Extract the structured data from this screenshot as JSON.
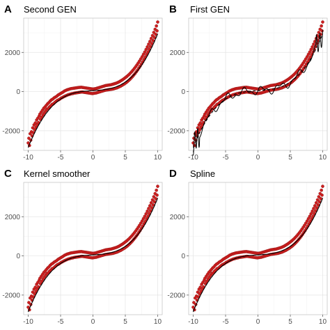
{
  "colors": {
    "points": "#cc1f1f",
    "points_stroke": "#8b0f0f",
    "curve": "#000000",
    "dashed": "#000000"
  },
  "chart_data": [
    {
      "type": "scatter",
      "panel": "A",
      "title": "Second GEN",
      "x_ticks": [
        -10,
        -5,
        0,
        5,
        10
      ],
      "y_ticks": [
        -2000,
        0,
        2000
      ],
      "xlim": [
        -10.7,
        10.7
      ],
      "ylim": [
        -3000,
        3750
      ],
      "curve_style": "smooth",
      "grid": true
    },
    {
      "type": "scatter",
      "panel": "B",
      "title": "First GEN",
      "x_ticks": [
        -10,
        -5,
        0,
        5,
        10
      ],
      "y_ticks": [
        -2000,
        0,
        2000
      ],
      "xlim": [
        -10.7,
        10.7
      ],
      "ylim": [
        -3000,
        3750
      ],
      "curve_style": "wiggly",
      "grid": true
    },
    {
      "type": "scatter",
      "panel": "C",
      "title": "Kernel smoother",
      "x_ticks": [
        -10,
        -5,
        0,
        5,
        10
      ],
      "y_ticks": [
        -2000,
        0,
        2000
      ],
      "xlim": [
        -10.7,
        10.7
      ],
      "ylim": [
        -3000,
        3750
      ],
      "curve_style": "smooth",
      "grid": true
    },
    {
      "type": "scatter",
      "panel": "D",
      "title": "Spline",
      "x_ticks": [
        -10,
        -5,
        0,
        5,
        10
      ],
      "y_ticks": [
        -2000,
        0,
        2000
      ],
      "xlim": [
        -10.7,
        10.7
      ],
      "ylim": [
        -3000,
        3750
      ],
      "curve_style": "smooth",
      "grid": true
    }
  ],
  "series_points": [
    [
      -10,
      -2620
    ],
    [
      -9.9,
      -2380
    ],
    [
      -9.8,
      -2750
    ],
    [
      -9.7,
      -2150
    ],
    [
      -9.6,
      -2480
    ],
    [
      -9.5,
      -2050
    ],
    [
      -9.4,
      -2260
    ],
    [
      -9.3,
      -1850
    ],
    [
      -9.2,
      -2100
    ],
    [
      -9.1,
      -1700
    ],
    [
      -9,
      -1950
    ],
    [
      -8.9,
      -1600
    ],
    [
      -8.8,
      -1820
    ],
    [
      -8.7,
      -1450
    ],
    [
      -8.6,
      -1700
    ],
    [
      -8.5,
      -1350
    ],
    [
      -8.4,
      -1580
    ],
    [
      -8.3,
      -1250
    ],
    [
      -8.2,
      -1150
    ],
    [
      -8.1,
      -1420
    ],
    [
      -8,
      -1050
    ],
    [
      -7.9,
      -1300
    ],
    [
      -7.8,
      -950
    ],
    [
      -7.7,
      -1180
    ],
    [
      -7.6,
      -850
    ],
    [
      -7.5,
      -1080
    ],
    [
      -7.4,
      -780
    ],
    [
      -7.3,
      -980
    ],
    [
      -7.2,
      -700
    ],
    [
      -7.1,
      -900
    ],
    [
      -7,
      -620
    ],
    [
      -6.9,
      -860
    ],
    [
      -6.8,
      -560
    ],
    [
      -6.7,
      -780
    ],
    [
      -6.6,
      -480
    ],
    [
      -6.5,
      -720
    ],
    [
      -6.4,
      -420
    ],
    [
      -6.3,
      -650
    ],
    [
      -6.2,
      -380
    ],
    [
      -6.1,
      -620
    ],
    [
      -6,
      -320
    ],
    [
      -5.9,
      -560
    ],
    [
      -5.8,
      -280
    ],
    [
      -5.7,
      -500
    ],
    [
      -5.6,
      -240
    ],
    [
      -5.5,
      -450
    ],
    [
      -5.4,
      -180
    ],
    [
      -5.3,
      -420
    ],
    [
      -5.2,
      -140
    ],
    [
      -5.1,
      -380
    ],
    [
      -5,
      -100
    ],
    [
      -4.9,
      -330
    ],
    [
      -4.8,
      -60
    ],
    [
      -4.7,
      -300
    ],
    [
      -4.6,
      -20
    ],
    [
      -4.5,
      -260
    ],
    [
      -4.4,
      30
    ],
    [
      -4.3,
      -230
    ],
    [
      -4.2,
      60
    ],
    [
      -4.1,
      -200
    ],
    [
      -4,
      90
    ],
    [
      -3.9,
      -170
    ],
    [
      -3.8,
      110
    ],
    [
      -3.7,
      -150
    ],
    [
      -3.6,
      130
    ],
    [
      -3.5,
      -130
    ],
    [
      -3.4,
      150
    ],
    [
      -3.3,
      -110
    ],
    [
      -3.2,
      160
    ],
    [
      -3.1,
      -100
    ],
    [
      -3,
      170
    ],
    [
      -2.9,
      -80
    ],
    [
      -2.8,
      180
    ],
    [
      -2.7,
      -70
    ],
    [
      -2.6,
      190
    ],
    [
      -2.5,
      -60
    ],
    [
      -2.4,
      200
    ],
    [
      -2.3,
      -50
    ],
    [
      -2.2,
      210
    ],
    [
      -2.1,
      -40
    ],
    [
      -2,
      215
    ],
    [
      -1.9,
      -30
    ],
    [
      -1.8,
      220
    ],
    [
      -1.7,
      -20
    ],
    [
      -1.6,
      210
    ],
    [
      -1.5,
      -30
    ],
    [
      -1.4,
      200
    ],
    [
      -1.3,
      -40
    ],
    [
      -1.2,
      190
    ],
    [
      -1.1,
      -50
    ],
    [
      -1,
      180
    ],
    [
      -0.9,
      -60
    ],
    [
      -0.8,
      170
    ],
    [
      -0.7,
      -70
    ],
    [
      -0.6,
      160
    ],
    [
      -0.5,
      -80
    ],
    [
      -0.4,
      150
    ],
    [
      -0.3,
      -90
    ],
    [
      -0.2,
      140
    ],
    [
      -0.1,
      -100
    ],
    [
      0,
      130
    ],
    [
      0.1,
      -90
    ],
    [
      0.2,
      140
    ],
    [
      0.3,
      -80
    ],
    [
      0.4,
      150
    ],
    [
      0.5,
      -70
    ],
    [
      0.6,
      170
    ],
    [
      0.7,
      -50
    ],
    [
      0.8,
      190
    ],
    [
      0.9,
      -30
    ],
    [
      1,
      210
    ],
    [
      1.1,
      -10
    ],
    [
      1.2,
      230
    ],
    [
      1.3,
      10
    ],
    [
      1.4,
      250
    ],
    [
      1.5,
      30
    ],
    [
      1.6,
      270
    ],
    [
      1.7,
      50
    ],
    [
      1.8,
      290
    ],
    [
      1.9,
      70
    ],
    [
      2,
      310
    ],
    [
      2.1,
      80
    ],
    [
      2.2,
      320
    ],
    [
      2.3,
      90
    ],
    [
      2.4,
      330
    ],
    [
      2.5,
      100
    ],
    [
      2.6,
      340
    ],
    [
      2.7,
      110
    ],
    [
      2.8,
      350
    ],
    [
      2.9,
      120
    ],
    [
      3,
      370
    ],
    [
      3.1,
      130
    ],
    [
      3.2,
      390
    ],
    [
      3.3,
      150
    ],
    [
      3.4,
      410
    ],
    [
      3.5,
      170
    ],
    [
      3.6,
      430
    ],
    [
      3.7,
      190
    ],
    [
      3.8,
      460
    ],
    [
      3.9,
      220
    ],
    [
      4,
      490
    ],
    [
      4.1,
      250
    ],
    [
      4.2,
      530
    ],
    [
      4.3,
      280
    ],
    [
      4.4,
      570
    ],
    [
      4.5,
      320
    ],
    [
      4.6,
      610
    ],
    [
      4.7,
      360
    ],
    [
      4.8,
      660
    ],
    [
      4.9,
      400
    ],
    [
      5,
      710
    ],
    [
      5.1,
      450
    ],
    [
      5.2,
      760
    ],
    [
      5.3,
      500
    ],
    [
      5.4,
      820
    ],
    [
      5.5,
      560
    ],
    [
      5.6,
      880
    ],
    [
      5.7,
      620
    ],
    [
      5.8,
      950
    ],
    [
      5.9,
      690
    ],
    [
      6,
      1020
    ],
    [
      6.1,
      760
    ],
    [
      6.2,
      1100
    ],
    [
      6.3,
      840
    ],
    [
      6.4,
      1180
    ],
    [
      6.5,
      920
    ],
    [
      6.6,
      1270
    ],
    [
      6.7,
      1010
    ],
    [
      6.8,
      1360
    ],
    [
      6.9,
      1100
    ],
    [
      7,
      1460
    ],
    [
      7.1,
      1200
    ],
    [
      7.2,
      1560
    ],
    [
      7.3,
      1300
    ],
    [
      7.4,
      1670
    ],
    [
      7.5,
      1410
    ],
    [
      7.6,
      1780
    ],
    [
      7.7,
      1520
    ],
    [
      7.8,
      1900
    ],
    [
      7.9,
      1640
    ],
    [
      8,
      2020
    ],
    [
      8.1,
      1760
    ],
    [
      8.2,
      2150
    ],
    [
      8.3,
      1890
    ],
    [
      8.4,
      2280
    ],
    [
      8.5,
      2020
    ],
    [
      8.6,
      2420
    ],
    [
      8.7,
      2160
    ],
    [
      8.8,
      2560
    ],
    [
      8.9,
      2300
    ],
    [
      9,
      2710
    ],
    [
      9.1,
      2450
    ],
    [
      9.2,
      2860
    ],
    [
      9.3,
      2600
    ],
    [
      9.4,
      3020
    ],
    [
      9.5,
      2760
    ],
    [
      9.6,
      3180
    ],
    [
      9.7,
      2920
    ],
    [
      9.8,
      3350
    ],
    [
      9.9,
      3100
    ],
    [
      10,
      3550
    ]
  ]
}
